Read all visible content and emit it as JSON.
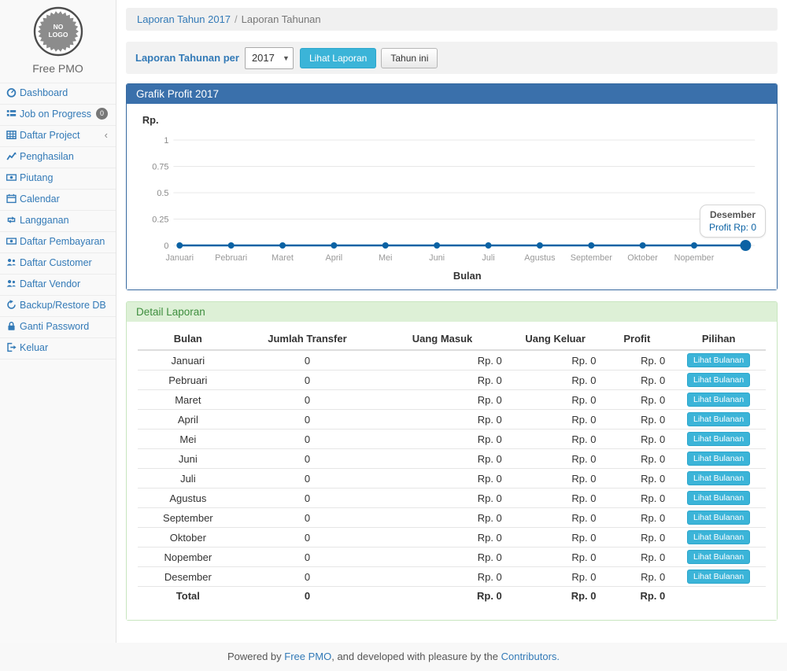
{
  "brand": {
    "logo_line1": "NO",
    "logo_line2": "LOGO",
    "name": "Free PMO"
  },
  "sidebar": {
    "items": [
      {
        "slug": "dashboard",
        "icon": "gauge",
        "label": "Dashboard"
      },
      {
        "slug": "job-on-progress",
        "icon": "list",
        "label": "Job on Progress",
        "badge": "0"
      },
      {
        "slug": "daftar-project",
        "icon": "table",
        "label": "Daftar Project",
        "chevron": "‹"
      },
      {
        "slug": "penghasilan",
        "icon": "line-chart",
        "label": "Penghasilan"
      },
      {
        "slug": "piutang",
        "icon": "money",
        "label": "Piutang"
      },
      {
        "slug": "calendar",
        "icon": "calendar",
        "label": "Calendar"
      },
      {
        "slug": "langganan",
        "icon": "retweet",
        "label": "Langganan"
      },
      {
        "slug": "daftar-pembayaran",
        "icon": "money",
        "label": "Daftar Pembayaran"
      },
      {
        "slug": "daftar-customer",
        "icon": "users",
        "label": "Daftar Customer"
      },
      {
        "slug": "daftar-vendor",
        "icon": "users",
        "label": "Daftar Vendor"
      },
      {
        "slug": "backup-restore-db",
        "icon": "refresh",
        "label": "Backup/Restore DB"
      },
      {
        "slug": "ganti-password",
        "icon": "lock",
        "label": "Ganti Password"
      },
      {
        "slug": "keluar",
        "icon": "sign-out",
        "label": "Keluar"
      }
    ]
  },
  "breadcrumb": {
    "link": "Laporan Tahun 2017",
    "separator": "/",
    "current": "Laporan Tahunan"
  },
  "filter": {
    "label": "Laporan Tahunan per",
    "year": "2017",
    "submit_label": "Lihat Laporan",
    "this_year_label": "Tahun ini"
  },
  "chart_data": {
    "type": "line",
    "title": "Grafik Profit 2017",
    "categories": [
      "Januari",
      "Pebruari",
      "Maret",
      "April",
      "Mei",
      "Juni",
      "Juli",
      "Agustus",
      "September",
      "Oktober",
      "Nopember",
      "Desember"
    ],
    "values": [
      0,
      0,
      0,
      0,
      0,
      0,
      0,
      0,
      0,
      0,
      0,
      0
    ],
    "ylabel": "Rp.",
    "xlabel": "Bulan",
    "yticks": [
      1,
      0.75,
      0.5,
      0.25,
      0
    ],
    "ylim": [
      0,
      1
    ],
    "grid": true,
    "last_label_hidden": true,
    "line_color": "#0b62a4",
    "tooltip": {
      "category": "Desember",
      "text": "Profit Rp: 0"
    }
  },
  "detail": {
    "title": "Detail Laporan",
    "table": {
      "headers": [
        "Bulan",
        "Jumlah Transfer",
        "Uang Masuk",
        "Uang Keluar",
        "Profit",
        "Pilihan"
      ],
      "action_label": "Lihat Bulanan",
      "rows": [
        {
          "bulan": "Januari",
          "transfer": "0",
          "masuk": "Rp. 0",
          "keluar": "Rp. 0",
          "profit": "Rp. 0"
        },
        {
          "bulan": "Pebruari",
          "transfer": "0",
          "masuk": "Rp. 0",
          "keluar": "Rp. 0",
          "profit": "Rp. 0"
        },
        {
          "bulan": "Maret",
          "transfer": "0",
          "masuk": "Rp. 0",
          "keluar": "Rp. 0",
          "profit": "Rp. 0"
        },
        {
          "bulan": "April",
          "transfer": "0",
          "masuk": "Rp. 0",
          "keluar": "Rp. 0",
          "profit": "Rp. 0"
        },
        {
          "bulan": "Mei",
          "transfer": "0",
          "masuk": "Rp. 0",
          "keluar": "Rp. 0",
          "profit": "Rp. 0"
        },
        {
          "bulan": "Juni",
          "transfer": "0",
          "masuk": "Rp. 0",
          "keluar": "Rp. 0",
          "profit": "Rp. 0"
        },
        {
          "bulan": "Juli",
          "transfer": "0",
          "masuk": "Rp. 0",
          "keluar": "Rp. 0",
          "profit": "Rp. 0"
        },
        {
          "bulan": "Agustus",
          "transfer": "0",
          "masuk": "Rp. 0",
          "keluar": "Rp. 0",
          "profit": "Rp. 0"
        },
        {
          "bulan": "September",
          "transfer": "0",
          "masuk": "Rp. 0",
          "keluar": "Rp. 0",
          "profit": "Rp. 0"
        },
        {
          "bulan": "Oktober",
          "transfer": "0",
          "masuk": "Rp. 0",
          "keluar": "Rp. 0",
          "profit": "Rp. 0"
        },
        {
          "bulan": "Nopember",
          "transfer": "0",
          "masuk": "Rp. 0",
          "keluar": "Rp. 0",
          "profit": "Rp. 0"
        },
        {
          "bulan": "Desember",
          "transfer": "0",
          "masuk": "Rp. 0",
          "keluar": "Rp. 0",
          "profit": "Rp. 0"
        }
      ],
      "total": {
        "label": "Total",
        "transfer": "0",
        "masuk": "Rp. 0",
        "keluar": "Rp. 0",
        "profit": "Rp. 0"
      }
    }
  },
  "footer": {
    "prefix": "Powered by ",
    "link1": "Free PMO",
    "middle": ", and developed with pleasure by the ",
    "link2": "Contributors."
  }
}
